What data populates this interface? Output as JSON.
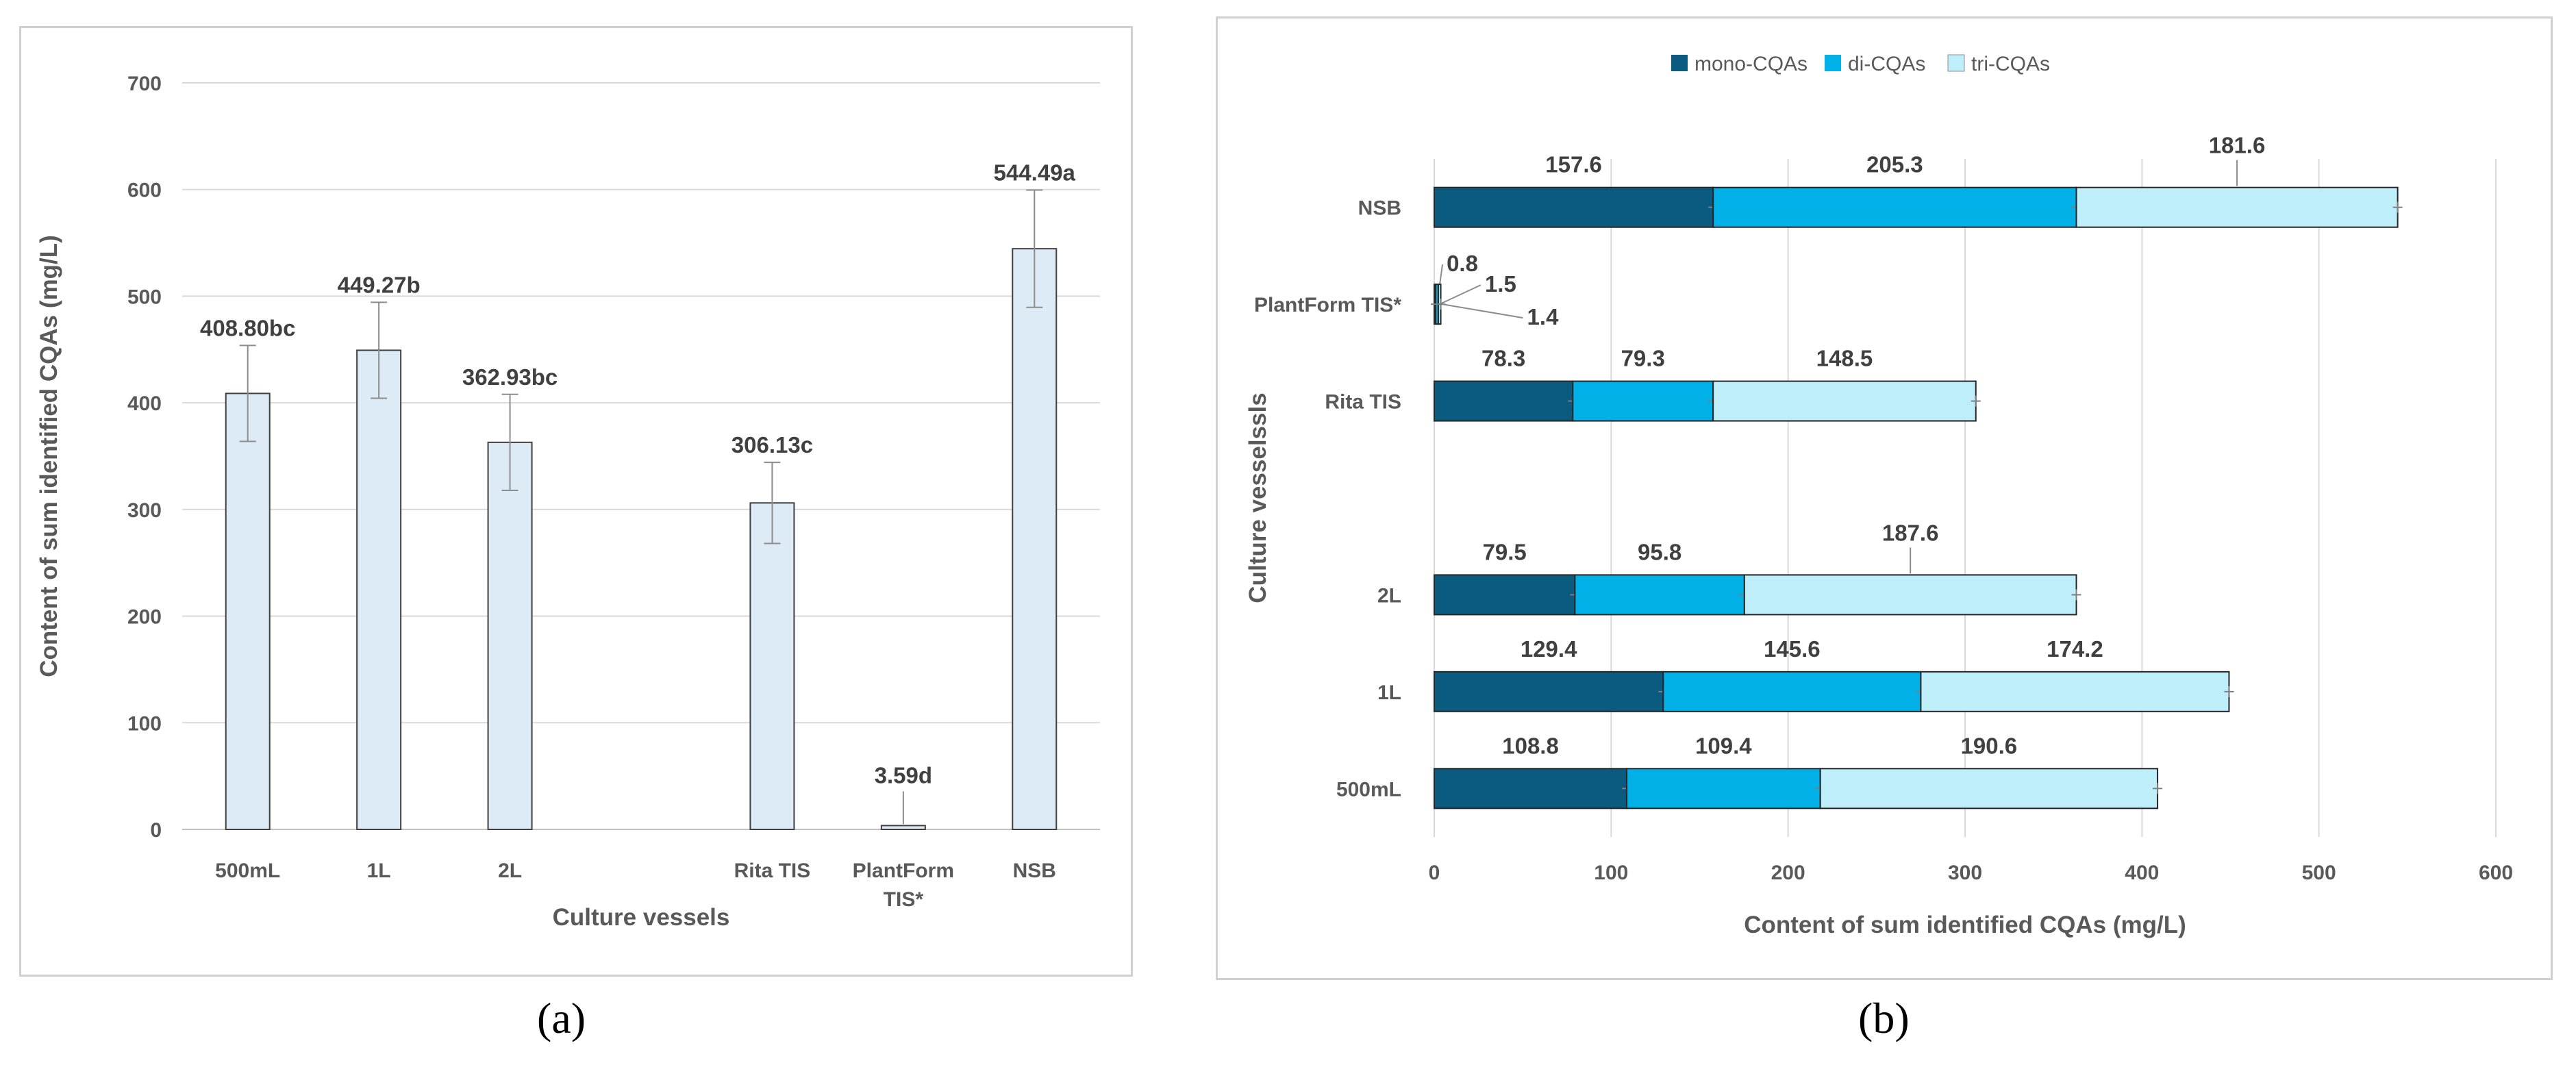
{
  "figure_labels": {
    "a": "(a)",
    "b": "(b)"
  },
  "colors": {
    "bar_a_fill": "#ddebf7",
    "bar_a_stroke": "#404040",
    "mono": "#0b5a80",
    "di": "#00b0e6",
    "tri": "#bfeefb",
    "grid": "#d9d9d9",
    "text": "#595959"
  },
  "chart_data": [
    {
      "id": "a",
      "type": "bar",
      "title": "",
      "xlabel": "Culture vessels",
      "ylabel": "Content of sum identified CQAs (mg/L)",
      "ylim": [
        0,
        700
      ],
      "yticks": [
        0,
        100,
        200,
        300,
        400,
        500,
        600,
        700
      ],
      "grid": true,
      "categories": [
        "500mL",
        "1L",
        "2L",
        "",
        "Rita TIS",
        "PlantForm TIS*",
        "NSB"
      ],
      "category_lines": [
        [
          "500mL"
        ],
        [
          "1L"
        ],
        [
          "2L"
        ],
        [
          ""
        ],
        [
          "Rita TIS"
        ],
        [
          "PlantForm",
          "TIS*"
        ],
        [
          "NSB"
        ]
      ],
      "values": [
        408.8,
        449.27,
        362.93,
        null,
        306.13,
        3.59,
        544.49
      ],
      "errors": [
        45,
        45,
        45,
        null,
        38,
        0,
        55
      ],
      "data_labels": [
        "408.80bc",
        "449.27b",
        "362.93bc",
        "",
        "306.13c",
        "3.59d",
        "544.49a"
      ]
    },
    {
      "id": "b",
      "type": "bar",
      "orientation": "horizontal",
      "stacked": true,
      "title": "",
      "xlabel": "Content of sum identified CQAs (mg/L)",
      "ylabel": "Culture vesselssls",
      "xlim": [
        0,
        600
      ],
      "xticks": [
        0,
        100,
        200,
        300,
        400,
        500,
        600
      ],
      "grid": true,
      "legend_position": "top",
      "categories": [
        "500mL",
        "1L",
        "2L",
        "",
        "Rita TIS",
        "PlantForm TIS*",
        "NSB"
      ],
      "series": [
        {
          "name": "mono-CQAs",
          "values": [
            108.8,
            129.4,
            79.5,
            null,
            78.3,
            0.8,
            157.6
          ],
          "labels": [
            "108.8",
            "129.4",
            "79.5",
            "",
            "78.3",
            "0.8",
            "157.6"
          ]
        },
        {
          "name": "di-CQAs",
          "values": [
            109.4,
            145.6,
            95.8,
            null,
            79.3,
            1.5,
            205.3
          ],
          "labels": [
            "109.4",
            "145.6",
            "95.8",
            "",
            "79.3",
            "1.5",
            "205.3"
          ]
        },
        {
          "name": "tri-CQAs",
          "values": [
            190.6,
            174.2,
            187.6,
            null,
            148.5,
            1.4,
            181.6
          ],
          "labels": [
            "190.6",
            "174.2",
            "187.6",
            "",
            "148.5",
            "1.4",
            "181.6"
          ]
        }
      ]
    }
  ]
}
